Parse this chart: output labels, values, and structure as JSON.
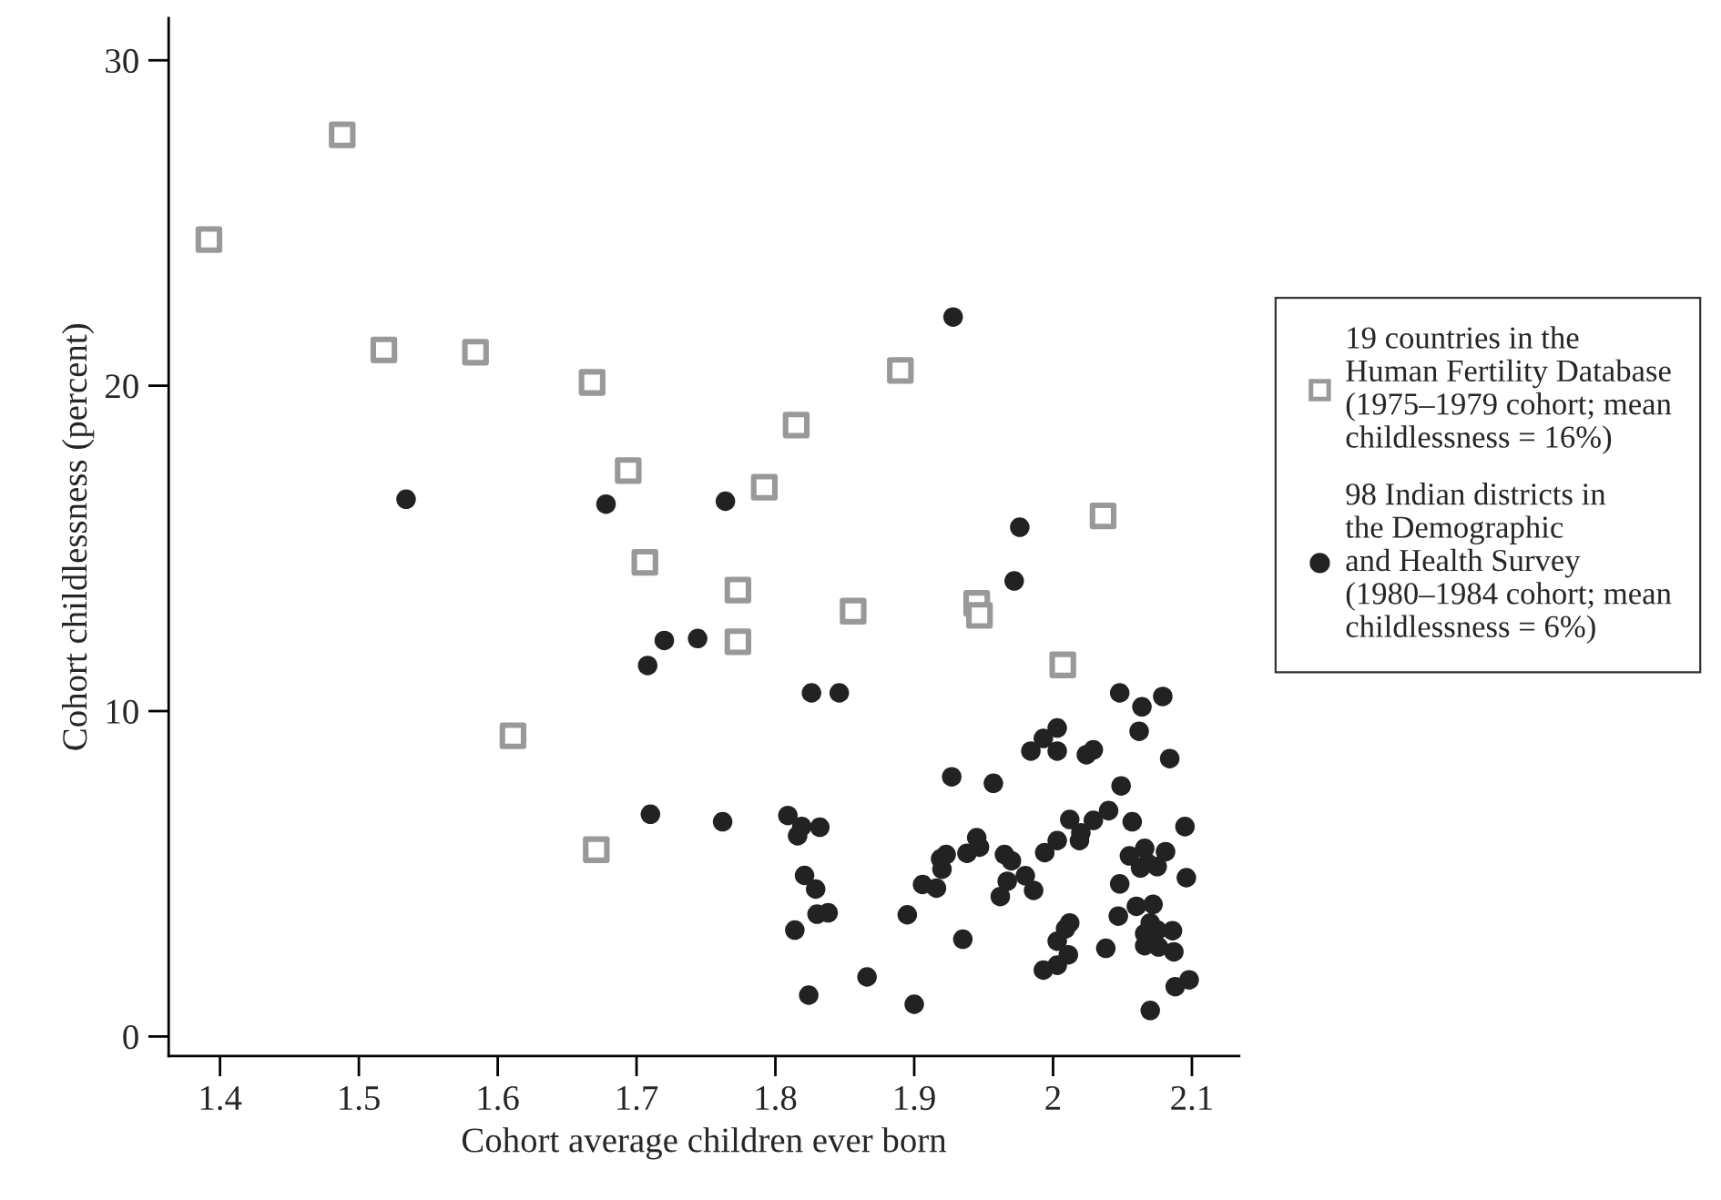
{
  "chart_data": {
    "type": "scatter",
    "xlabel": "Cohort average children ever born",
    "ylabel": "Cohort childlessness (percent)",
    "xlim": [
      1.363,
      2.134
    ],
    "ylim": [
      -0.6,
      31.3
    ],
    "xticks": [
      1.4,
      1.5,
      1.6,
      1.7,
      1.8,
      1.9,
      2,
      2.1
    ],
    "yticks": [
      0,
      10,
      20,
      30
    ],
    "grid": false,
    "legend": "right",
    "series": [
      {
        "name": "19 countries in the\nHuman Fertility Database\n(1975–1979 cohort; mean\nchildlessness = 16%)",
        "color": "#999999",
        "marker": "square",
        "x": [
          1.392,
          1.488,
          1.518,
          1.584,
          1.668,
          1.815,
          1.694,
          1.792,
          1.706,
          1.773,
          1.856,
          1.773,
          1.89,
          2.036,
          1.945,
          1.947,
          2.007,
          1.671,
          1.611
        ],
        "values": [
          24.49,
          27.71,
          21.1,
          21.03,
          20.1,
          18.79,
          17.39,
          16.88,
          14.57,
          13.72,
          13.07,
          12.13,
          20.47,
          16.0,
          13.31,
          12.94,
          11.42,
          5.74,
          9.24
        ]
      },
      {
        "name": "98 Indian districts in\nthe Demographic\nand Health Survey\n(1980–1984 cohort; mean\nchildlessness = 6%)",
        "color": "#222222",
        "marker": "circle",
        "x": [
          1.534,
          1.678,
          1.764,
          1.72,
          1.744,
          1.928,
          1.976,
          1.972,
          1.708,
          1.826,
          1.846,
          2.048,
          2.064,
          2.079,
          1.71,
          1.762,
          1.809,
          1.819,
          1.816,
          1.832,
          1.821,
          1.829,
          1.83,
          1.838,
          1.814,
          1.866,
          1.824,
          2.062,
          2.084,
          2.003,
          1.993,
          1.984,
          2.003,
          2.024,
          2.029,
          1.927,
          1.957,
          2.049,
          2.095,
          2.057,
          2.04,
          2.029,
          2.012,
          2.02,
          2.019,
          2.003,
          1.994,
          1.945,
          1.947,
          1.938,
          1.923,
          1.919,
          1.92,
          1.965,
          1.97,
          1.98,
          1.986,
          1.962,
          1.967,
          1.906,
          1.916,
          1.895,
          1.935,
          1.9,
          2.055,
          2.066,
          2.081,
          2.063,
          2.075,
          2.068,
          2.048,
          2.096,
          2.06,
          2.072,
          2.047,
          2.012,
          2.009,
          2.003,
          2.011,
          2.003,
          1.993,
          2.038,
          2.066,
          2.07,
          2.075,
          2.086,
          2.066,
          2.076,
          2.087,
          2.088,
          2.098,
          2.07
        ],
        "values": [
          16.51,
          16.36,
          16.45,
          12.17,
          12.23,
          22.11,
          15.65,
          14.0,
          11.4,
          10.56,
          10.56,
          10.56,
          10.13,
          10.45,
          6.83,
          6.6,
          6.79,
          6.45,
          6.17,
          6.43,
          4.95,
          4.53,
          3.76,
          3.8,
          3.27,
          1.83,
          1.27,
          9.38,
          8.54,
          9.48,
          9.16,
          8.77,
          8.77,
          8.66,
          8.81,
          7.98,
          7.78,
          7.7,
          6.45,
          6.6,
          6.94,
          6.64,
          6.67,
          6.26,
          6.02,
          6.02,
          5.65,
          6.11,
          5.82,
          5.63,
          5.59,
          5.46,
          5.14,
          5.59,
          5.4,
          4.94,
          4.49,
          4.3,
          4.77,
          4.67,
          4.56,
          3.74,
          2.99,
          0.99,
          5.55,
          5.78,
          5.68,
          5.18,
          5.22,
          5.33,
          4.69,
          4.88,
          4.0,
          4.06,
          3.7,
          3.49,
          3.31,
          2.93,
          2.51,
          2.19,
          2.04,
          2.71,
          3.16,
          3.49,
          3.27,
          3.25,
          2.79,
          2.75,
          2.6,
          1.53,
          1.74,
          0.8
        ]
      }
    ]
  }
}
